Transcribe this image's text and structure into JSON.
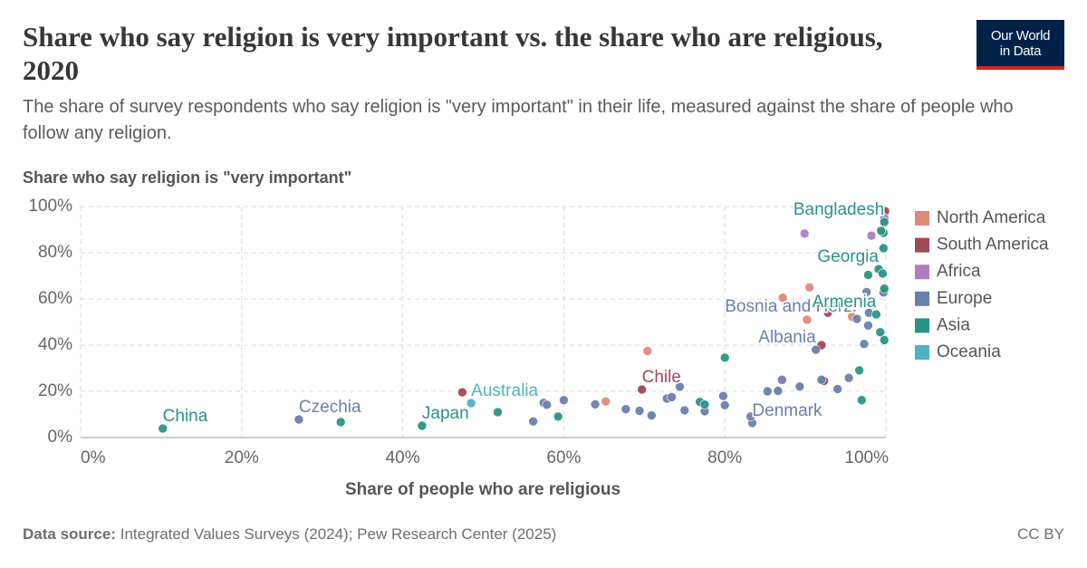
{
  "chart_data": {
    "type": "scatter",
    "title": "Share who say religion is very important vs. the share who are religious, 2020",
    "subtitle": "The share of survey respondents who say religion is \"very important\" in their life, measured against the share of people who follow any religion.",
    "y_label": "Share who say religion is \"very important\"",
    "x_label": "Share of people who are religious",
    "source_label": "Data source:",
    "source": "Integrated Values Surveys (2024); Pew Research Center (2025)",
    "license": "CC BY",
    "logo_lines": [
      "Our World",
      "in Data"
    ],
    "xlim": [
      0,
      100
    ],
    "ylim": [
      0,
      100
    ],
    "xticks": [
      {
        "value": 0,
        "label": "0%"
      },
      {
        "value": 20,
        "label": "20%"
      },
      {
        "value": 40,
        "label": "40%"
      },
      {
        "value": 60,
        "label": "60%"
      },
      {
        "value": 80,
        "label": "80%"
      },
      {
        "value": 100,
        "label": "100%"
      }
    ],
    "yticks": [
      {
        "value": 0,
        "label": "0%"
      },
      {
        "value": 20,
        "label": "20%"
      },
      {
        "value": 40,
        "label": "40%"
      },
      {
        "value": 60,
        "label": "60%"
      },
      {
        "value": 80,
        "label": "80%"
      },
      {
        "value": 100,
        "label": "100%"
      }
    ],
    "grid": true,
    "legend": "right",
    "series": [
      {
        "name": "North America",
        "color": "#e0897a",
        "x": [
          70.4,
          87.2,
          90.5,
          90.2,
          95.8,
          65.2
        ],
        "values": [
          37.5,
          60.5,
          65,
          51,
          52.3,
          15.6
        ],
        "point_labels": [
          null,
          null,
          null,
          null,
          null,
          null
        ]
      },
      {
        "name": "South America",
        "color": "#9e4a56",
        "x": [
          47.4,
          69.7,
          92.0,
          92.3,
          92.8,
          99.9
        ],
        "values": [
          19.6,
          20.8,
          40,
          24.5,
          54,
          98
        ],
        "point_labels": [
          null,
          "Chile",
          null,
          null,
          null,
          null
        ]
      },
      {
        "name": "Africa",
        "color": "#b27cc0",
        "x": [
          89.9,
          98.2,
          99.8
        ],
        "values": [
          88.3,
          87.4,
          95
        ],
        "point_labels": [
          null,
          null,
          null
        ]
      },
      {
        "name": "Europe",
        "color": "#6a7fae",
        "x": [
          27.1,
          56.2,
          57.5,
          57.9,
          60,
          63.9,
          67.7,
          69.4,
          70.9,
          72.8,
          73.4,
          75,
          74.4,
          77.5,
          79.8,
          80.0,
          83.4,
          83.2,
          85.3,
          86.6,
          87.1,
          89.3,
          91.3,
          92,
          94,
          95.4,
          96.4,
          97.3,
          97.6,
          97.9,
          97.8,
          99.7
        ],
        "values": [
          7.8,
          7,
          15,
          14.2,
          16.2,
          14.4,
          12.3,
          11.6,
          9.6,
          16.9,
          17.5,
          11.8,
          22,
          11.4,
          18,
          14,
          6.3,
          9.1,
          20,
          20.2,
          25,
          22.1,
          38,
          25,
          21,
          25.8,
          51.4,
          40.5,
          63,
          54,
          48.5,
          62.8
        ],
        "point_labels": [
          "Czechia",
          null,
          null,
          null,
          null,
          null,
          null,
          null,
          null,
          null,
          null,
          null,
          null,
          null,
          null,
          null,
          "Denmark",
          null,
          null,
          null,
          null,
          null,
          "Albania",
          null,
          null,
          null,
          "Bosnia and Herz.",
          null,
          null,
          null,
          null,
          null
        ]
      },
      {
        "name": "Asia",
        "color": "#2a9387",
        "x": [
          10.2,
          32.3,
          42.4,
          51.8,
          59.3,
          76.9,
          77.5,
          80.0,
          96.7,
          97.0,
          97.8,
          98.8,
          99.1,
          99.6,
          99.8,
          99.7,
          99.7,
          99.3,
          99.8,
          99.4,
          99.8
        ],
        "values": [
          3.9,
          6.7,
          5.1,
          11,
          9.1,
          15.4,
          14.3,
          34.6,
          29.1,
          16.2,
          70.4,
          53.3,
          72.9,
          71,
          64.5,
          88.6,
          82,
          45.6,
          42.2,
          89.5,
          93.3
        ],
        "point_labels": [
          "China",
          null,
          "Japan",
          null,
          null,
          null,
          null,
          null,
          null,
          null,
          null,
          "Armenia",
          "Georgia",
          null,
          null,
          null,
          null,
          null,
          null,
          null,
          "Bangladesh"
        ]
      },
      {
        "name": "Oceania",
        "color": "#4fb3c2",
        "x": [
          48.5
        ],
        "values": [
          14.9
        ],
        "point_labels": [
          "Australia"
        ]
      }
    ]
  }
}
